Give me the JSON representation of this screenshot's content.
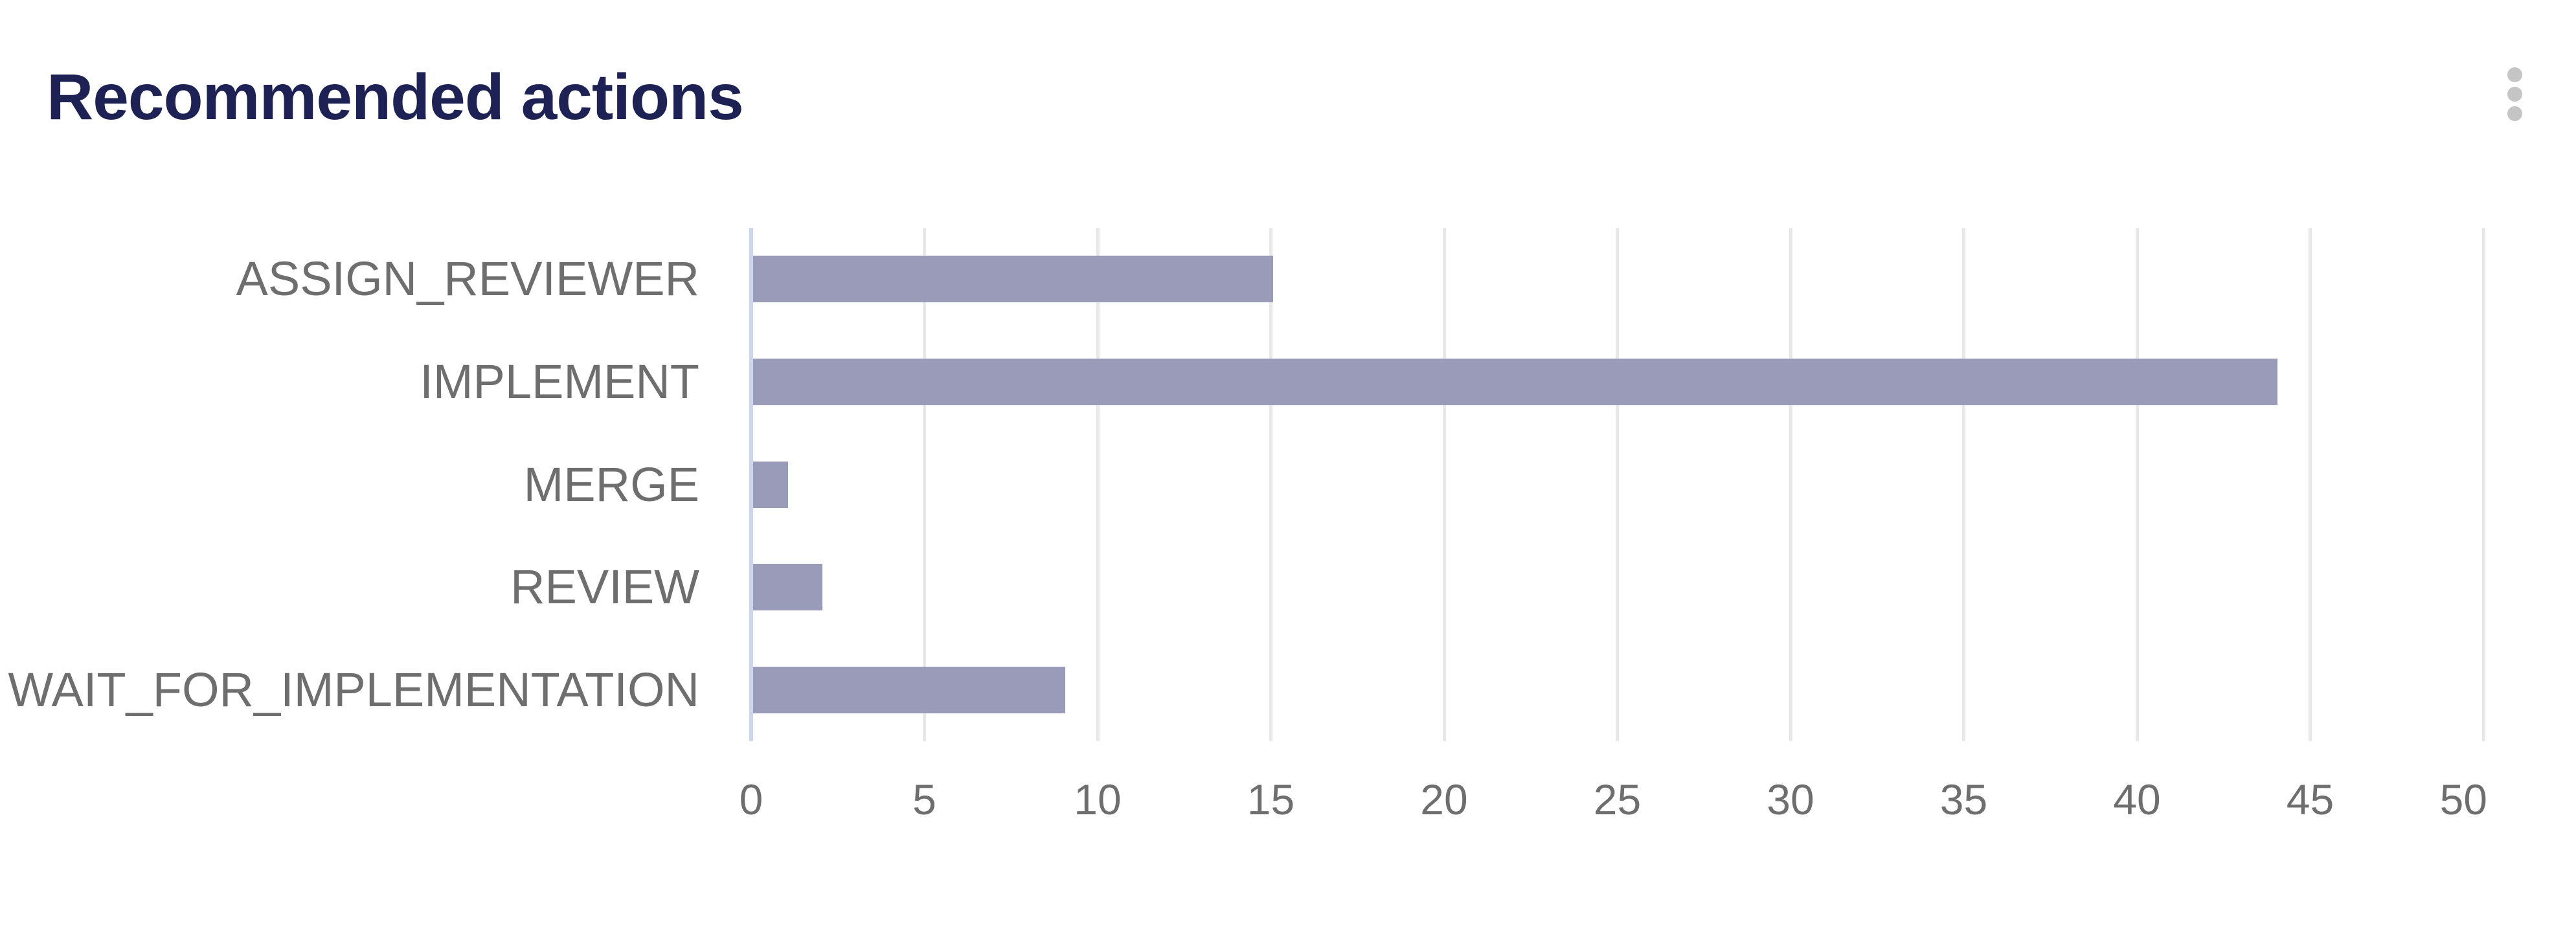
{
  "card": {
    "title": "Recommended actions",
    "menu_icon": "vertical-ellipsis",
    "menu_dot_color": "#c5c5c5",
    "background_color": "#ffffff",
    "title_color": "#1d2153"
  },
  "chart_data": {
    "type": "bar",
    "orientation": "horizontal",
    "title": "Recommended actions",
    "xlabel": "",
    "ylabel": "",
    "categories": [
      "ASSIGN_REVIEWER",
      "IMPLEMENT",
      "MERGE",
      "REVIEW",
      "WAIT_FOR_IMPLEMENTATION"
    ],
    "values": [
      15,
      44,
      1,
      2,
      9
    ],
    "xlim": [
      0,
      50
    ],
    "x_ticks": [
      0,
      5,
      10,
      15,
      20,
      25,
      30,
      35,
      40,
      45,
      50
    ],
    "grid": true,
    "legend": "none",
    "bar_color": "#999bb8",
    "axis_line_color": "#ccd6f0",
    "gridline_color": "#e8e8e8",
    "category_label_color": "#6e6e6e",
    "tick_label_color": "#6e6e6e"
  }
}
